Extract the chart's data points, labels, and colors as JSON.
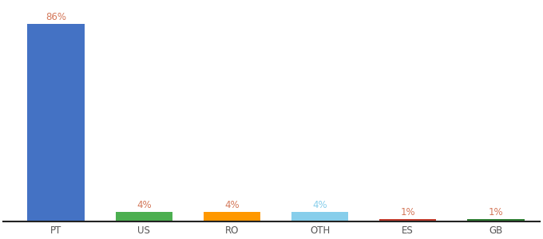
{
  "categories": [
    "PT",
    "US",
    "RO",
    "OTH",
    "ES",
    "GB"
  ],
  "values": [
    86,
    4,
    4,
    4,
    1,
    1
  ],
  "bar_colors": [
    "#4472c4",
    "#4caf50",
    "#ff9800",
    "#87ceeb",
    "#c0392b",
    "#2e7d32"
  ],
  "label_colors": [
    "#d4785a",
    "#d4785a",
    "#d4785a",
    "#87ceeb",
    "#d4785a",
    "#d4785a"
  ],
  "background_color": "#ffffff",
  "ylim": [
    0,
    95
  ],
  "label_fontsize": 8.5,
  "tick_fontsize": 8.5,
  "bar_width": 0.65
}
